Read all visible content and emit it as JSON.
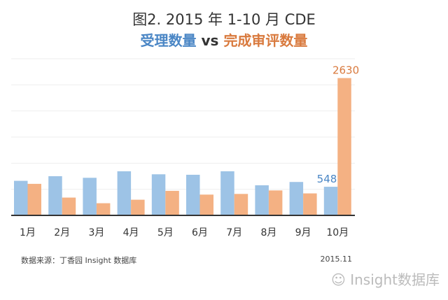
{
  "chart_data": {
    "type": "bar",
    "title": "图2. 2015 年 1-10 月 CDE",
    "subtitle": {
      "series_a": "受理数量",
      "vs": "vs",
      "series_b": "完成审评数量"
    },
    "categories": [
      "1月",
      "2月",
      "3月",
      "4月",
      "5月",
      "6月",
      "7月",
      "8月",
      "9月",
      "10月"
    ],
    "series": [
      {
        "name": "受理数量",
        "color": "#9dc3e6",
        "values": [
          662,
          751,
          720,
          845,
          787,
          778,
          845,
          577,
          640,
          548
        ]
      },
      {
        "name": "完成审评数量",
        "color": "#f4b183",
        "values": [
          604,
          341,
          233,
          300,
          470,
          398,
          411,
          478,
          421,
          2630
        ]
      }
    ],
    "data_labels": [
      {
        "series": 0,
        "index": 9,
        "text": "548",
        "color": "#4a86c5"
      },
      {
        "series": 1,
        "index": 9,
        "text": "2630",
        "color": "#d97a3e"
      }
    ],
    "ylim": [
      0,
      3000
    ],
    "grid": true,
    "gridlines": [
      500,
      1000,
      1500,
      2000,
      2500,
      3000
    ]
  },
  "footer": {
    "source": "数据来源：丁香园 Insight 数据库",
    "date": "2015.11",
    "watermark": "Insight数据库"
  }
}
